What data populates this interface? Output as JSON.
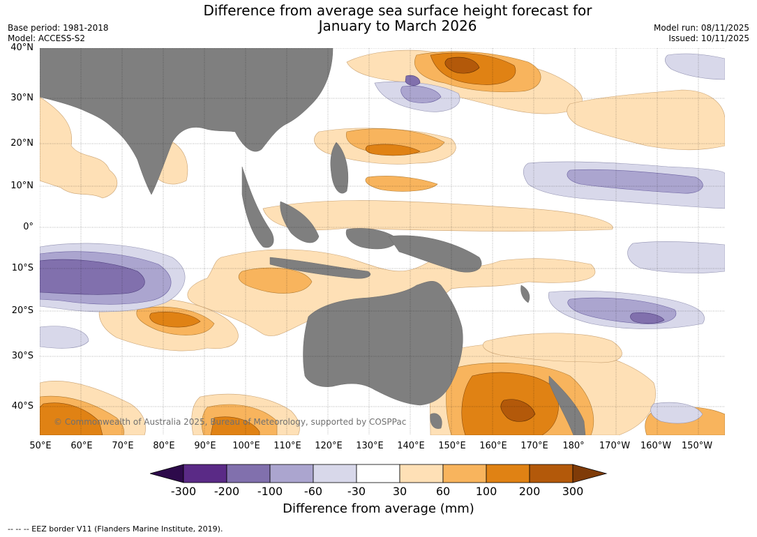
{
  "title_line1": "Difference from average sea surface height forecast for",
  "title_line2": "January to March 2026",
  "base_period": "Base period: 1981-2018",
  "model": "Model: ACCESS-S2",
  "model_run": "Model run: 08/11/2025",
  "issued": "Issued: 10/11/2025",
  "lat_labels": [
    "40°N",
    "30°N",
    "20°N",
    "10°N",
    "0°",
    "10°S",
    "20°S",
    "30°S",
    "40°S"
  ],
  "lon_labels": [
    "50°E",
    "60°E",
    "70°E",
    "80°E",
    "90°E",
    "100°E",
    "110°E",
    "120°E",
    "130°E",
    "140°E",
    "150°E",
    "160°E",
    "170°E",
    "180°",
    "170°W",
    "160°W",
    "150°W"
  ],
  "copyright": "© Commonwealth of Australia 2025, Bureau of Meteorology, supported by COSPPac",
  "colorbar": {
    "ticks": [
      "-300",
      "-200",
      "-100",
      "-60",
      "-30",
      "30",
      "60",
      "100",
      "200",
      "300"
    ],
    "colors": [
      "#2d0a4b",
      "#5a2a86",
      "#8170ad",
      "#aba5cf",
      "#d8d8ea",
      "#ffffff",
      "#fee0b6",
      "#f8b45d",
      "#e08214",
      "#b3590a",
      "#7f3b08"
    ],
    "label": "Difference from average (mm)"
  },
  "land_color": "#7f7f7f",
  "footer": "--  --  -- EEZ border V11 (Flanders Marine Institute, 2019)."
}
